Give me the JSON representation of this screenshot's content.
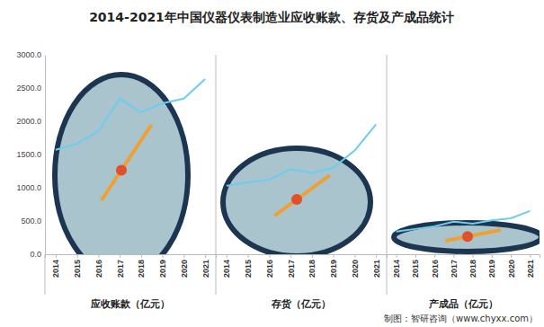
{
  "title": "2014-2021年中国仪器仪表制造业应收账款、存货及产成品统计",
  "source": "制图：智研咨询（www.chyxx.com）",
  "chart_data": [
    {
      "type": "line",
      "x_label": "应收账款（亿元）",
      "categories": [
        "2014",
        "2015",
        "2016",
        "2017",
        "2018",
        "2019",
        "2020",
        "2021"
      ],
      "values": [
        1570,
        1660,
        1850,
        2340,
        2135,
        2270,
        2340,
        2635
      ],
      "color": "#6ccdf0",
      "ylim": [
        0,
        3000
      ],
      "yticks": [
        {
          "value": 0,
          "label": "0.0"
        },
        {
          "value": 500,
          "label": "500.0"
        },
        {
          "value": 1000,
          "label": "1000.0"
        },
        {
          "value": 1500,
          "label": "1500.0"
        },
        {
          "value": 2000,
          "label": "2000.0"
        },
        {
          "value": 2500,
          "label": "2500.0"
        },
        {
          "value": 3000,
          "label": "3000.0"
        }
      ]
    },
    {
      "type": "line",
      "x_label": "存货（亿元）",
      "categories": [
        "2014",
        "2015",
        "2016",
        "2017",
        "2018",
        "2019",
        "2020",
        "2021"
      ],
      "values": [
        1030,
        1080,
        1120,
        1280,
        1220,
        1300,
        1560,
        1950
      ],
      "color": "#6ccdf0",
      "ylim": [
        0,
        3000
      ],
      "tick_labels": "x"
    },
    {
      "type": "line",
      "x_label": "产成品（亿元）",
      "categories": [
        "2014",
        "2015",
        "2016",
        "2017",
        "2018",
        "2019",
        "2020",
        "2021"
      ],
      "values": [
        340,
        380,
        420,
        490,
        460,
        510,
        540,
        650
      ],
      "color": "#6ccdf0",
      "ylim": [
        0,
        3000
      ],
      "tick_labels": "x"
    }
  ]
}
